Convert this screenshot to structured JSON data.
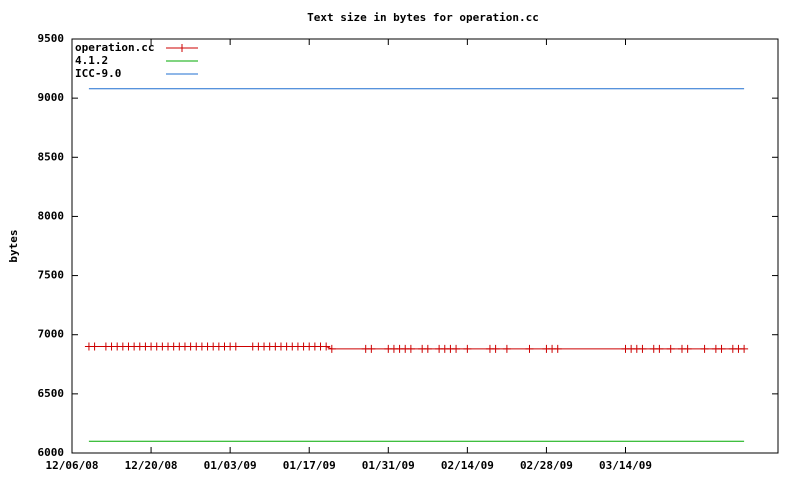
{
  "chart_data": {
    "type": "line",
    "title": "Text size in bytes for operation.cc",
    "y_label": "bytes",
    "xlim": [
      "2008-12-06",
      "2009-04-10"
    ],
    "xticks": [
      {
        "value": "2008-12-06",
        "label": "12/06/08"
      },
      {
        "value": "2008-12-20",
        "label": "12/20/08"
      },
      {
        "value": "2009-01-03",
        "label": "01/03/09"
      },
      {
        "value": "2009-01-17",
        "label": "01/17/09"
      },
      {
        "value": "2009-01-31",
        "label": "01/31/09"
      },
      {
        "value": "2009-02-14",
        "label": "02/14/09"
      },
      {
        "value": "2009-02-28",
        "label": "02/28/09"
      },
      {
        "value": "2009-03-14",
        "label": "03/14/09"
      }
    ],
    "ylim": [
      6000,
      9500
    ],
    "yticks": [
      6000,
      6500,
      7000,
      7500,
      8000,
      8500,
      9000,
      9500
    ],
    "legend": "top-left",
    "series": [
      {
        "name": "operation.cc",
        "color": "#cc0000",
        "marker": "+",
        "x": [
          "2008-12-09",
          "2008-12-10",
          "2008-12-12",
          "2008-12-13",
          "2008-12-14",
          "2008-12-15",
          "2008-12-16",
          "2008-12-17",
          "2008-12-18",
          "2008-12-19",
          "2008-12-20",
          "2008-12-21",
          "2008-12-22",
          "2008-12-23",
          "2008-12-24",
          "2008-12-25",
          "2008-12-26",
          "2008-12-27",
          "2008-12-28",
          "2008-12-29",
          "2008-12-30",
          "2008-12-31",
          "2009-01-01",
          "2009-01-02",
          "2009-01-03",
          "2009-01-04",
          "2009-01-07",
          "2009-01-08",
          "2009-01-09",
          "2009-01-10",
          "2009-01-11",
          "2009-01-12",
          "2009-01-13",
          "2009-01-14",
          "2009-01-15",
          "2009-01-16",
          "2009-01-17",
          "2009-01-18",
          "2009-01-19",
          "2009-01-20",
          "2009-01-21",
          "2009-01-27",
          "2009-01-28",
          "2009-01-31",
          "2009-02-01",
          "2009-02-02",
          "2009-02-03",
          "2009-02-04",
          "2009-02-06",
          "2009-02-07",
          "2009-02-09",
          "2009-02-10",
          "2009-02-11",
          "2009-02-12",
          "2009-02-14",
          "2009-02-18",
          "2009-02-19",
          "2009-02-21",
          "2009-02-25",
          "2009-02-28",
          "2009-03-01",
          "2009-03-02",
          "2009-03-14",
          "2009-03-15",
          "2009-03-16",
          "2009-03-17",
          "2009-03-19",
          "2009-03-20",
          "2009-03-22",
          "2009-03-24",
          "2009-03-25",
          "2009-03-28",
          "2009-03-30",
          "2009-03-31",
          "2009-04-02",
          "2009-04-03",
          "2009-04-04"
        ],
        "values": [
          6900,
          6900,
          6900,
          6900,
          6900,
          6900,
          6900,
          6900,
          6900,
          6900,
          6900,
          6900,
          6900,
          6900,
          6900,
          6900,
          6900,
          6900,
          6900,
          6900,
          6900,
          6900,
          6900,
          6900,
          6900,
          6900,
          6900,
          6900,
          6900,
          6900,
          6900,
          6900,
          6900,
          6900,
          6900,
          6900,
          6900,
          6900,
          6900,
          6900,
          6880,
          6880,
          6880,
          6880,
          6880,
          6880,
          6880,
          6880,
          6880,
          6880,
          6880,
          6880,
          6880,
          6880,
          6880,
          6880,
          6880,
          6880,
          6880,
          6880,
          6880,
          6880,
          6880,
          6880,
          6880,
          6880,
          6880,
          6880,
          6880,
          6880,
          6880,
          6880,
          6880,
          6880,
          6880,
          6880,
          6880
        ]
      },
      {
        "name": "4.1.2",
        "color": "#00aa00",
        "x": [
          "2008-12-09",
          "2009-04-04"
        ],
        "values": [
          6100,
          6100
        ]
      },
      {
        "name": "ICC-9.0",
        "color": "#1f6fd0",
        "x": [
          "2008-12-09",
          "2009-04-04"
        ],
        "values": [
          9080,
          9080
        ]
      }
    ]
  }
}
